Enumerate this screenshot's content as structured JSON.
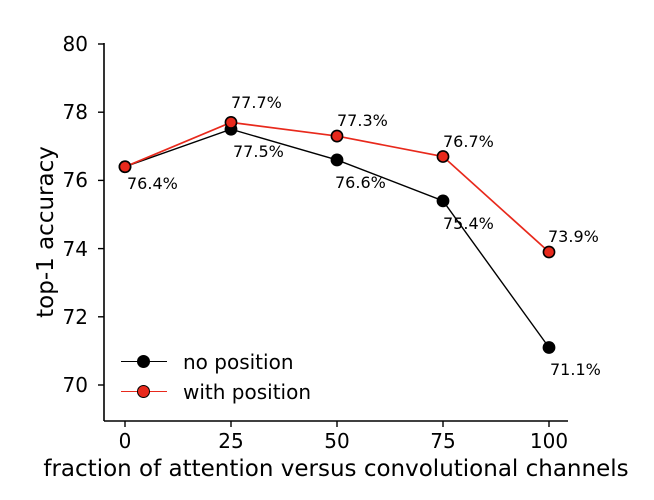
{
  "chart_data": {
    "type": "line",
    "title": "",
    "xlabel": "fraction of attention versus convolutional channels",
    "ylabel": "top-1 accuracy",
    "x": [
      0,
      25,
      50,
      75,
      100
    ],
    "xticks": [
      "0",
      "25",
      "50",
      "75",
      "100"
    ],
    "yticks": [
      "80",
      "78",
      "76",
      "74",
      "72",
      "70"
    ],
    "ytick_values": [
      80,
      78,
      76,
      74,
      72,
      70
    ],
    "xlim": [
      -5,
      104.5
    ],
    "ylim": [
      69,
      80.1
    ],
    "grid": false,
    "legend_position": "lower left",
    "background_color": "#ffffff",
    "axis_color": "#000000",
    "series": [
      {
        "name": "no position",
        "color": "#000000",
        "marker": "circle",
        "values": [
          76.4,
          77.5,
          76.6,
          75.4,
          71.1
        ]
      },
      {
        "name": "with position",
        "color": "#e8291c",
        "marker": "circle",
        "values": [
          76.4,
          77.7,
          77.3,
          76.7,
          73.9
        ]
      }
    ],
    "point_labels": [
      {
        "text": "76.4%",
        "x": 0,
        "value": 76.4,
        "placement": "below",
        "dx": 2,
        "dy": -6
      },
      {
        "text": "77.7%",
        "x": 25,
        "value": 77.7,
        "placement": "above",
        "dy": -4
      },
      {
        "text": "77.5%",
        "x": 25,
        "value": 77.5,
        "placement": "below",
        "dx": 2
      },
      {
        "text": "77.3%",
        "x": 50,
        "value": 77.3,
        "placement": "above"
      },
      {
        "text": "76.6%",
        "x": 50,
        "value": 76.6,
        "placement": "below",
        "dx": -2
      },
      {
        "text": "76.7%",
        "x": 75,
        "value": 76.7,
        "placement": "above"
      },
      {
        "text": "75.4%",
        "x": 75,
        "value": 75.4,
        "placement": "below"
      },
      {
        "text": "73.9%",
        "x": 100,
        "value": 73.9,
        "placement": "above",
        "dx": -1
      },
      {
        "text": "71.1%",
        "x": 100,
        "value": 71.1,
        "placement": "below",
        "dx": 1
      }
    ]
  }
}
